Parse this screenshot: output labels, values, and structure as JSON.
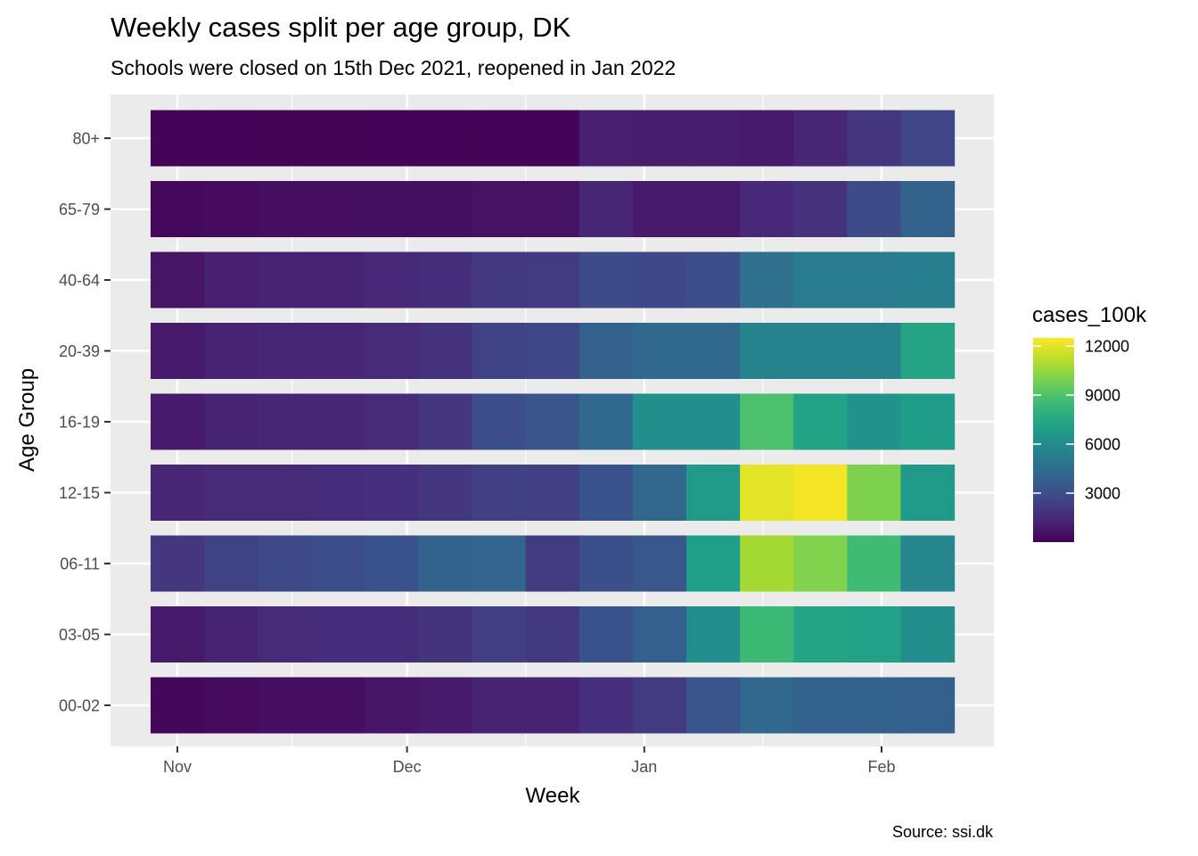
{
  "chart_data": {
    "type": "heatmap",
    "title": "Weekly cases split per age group, DK",
    "subtitle": "Schools were closed on 15th Dec 2021, reopened in Jan 2022",
    "xlabel": "Week",
    "ylabel": "Age Group",
    "caption": "Source: ssi.dk",
    "x_tick_labels": [
      "Nov",
      "Dec",
      "Jan",
      "Feb"
    ],
    "x_tick_dates": [
      "2021-11-01",
      "2021-12-01",
      "2022-01-01",
      "2022-02-01"
    ],
    "x": [
      "2021-11-01",
      "2021-11-08",
      "2021-11-15",
      "2021-11-22",
      "2021-11-29",
      "2021-12-06",
      "2021-12-13",
      "2021-12-20",
      "2021-12-27",
      "2022-01-03",
      "2022-01-10",
      "2022-01-17",
      "2022-01-24",
      "2022-01-31",
      "2022-02-07"
    ],
    "y": [
      "00-02",
      "03-05",
      "06-11",
      "12-15",
      "16-19",
      "20-39",
      "40-64",
      "65-79",
      "80+"
    ],
    "fill_name": "cases_100k",
    "fill_range": [
      0,
      12500
    ],
    "legend_ticks": [
      3000,
      6000,
      9000,
      12000
    ],
    "legend_placement": "right",
    "grid": true,
    "colors": {
      "panel_background": "#ebebeb",
      "grid_line": "#ffffff",
      "viridis": [
        "#440154",
        "#482878",
        "#3e4989",
        "#31688e",
        "#26828e",
        "#1f9e89",
        "#35b779",
        "#6ece58",
        "#b5de2b",
        "#fde725"
      ]
    },
    "values": {
      "00-02": [
        200,
        400,
        450,
        450,
        700,
        900,
        1200,
        1200,
        1700,
        2200,
        3300,
        4100,
        3900,
        3900,
        3800
      ],
      "03-05": [
        900,
        1200,
        1500,
        1600,
        1600,
        1900,
        2300,
        2100,
        3200,
        3800,
        6200,
        8500,
        7300,
        7100,
        6200
      ],
      "06-11": [
        2000,
        2500,
        2800,
        3000,
        3200,
        3900,
        4000,
        2200,
        3100,
        3400,
        7000,
        10800,
        10100,
        8600,
        5800
      ],
      "12-15": [
        1300,
        1500,
        1500,
        1600,
        1700,
        2000,
        2400,
        2400,
        3200,
        4100,
        6800,
        12000,
        12300,
        10000,
        6800
      ],
      "16-19": [
        900,
        1200,
        1300,
        1300,
        1500,
        2000,
        3000,
        3300,
        4200,
        6200,
        6200,
        8900,
        7200,
        6400,
        6900
      ],
      "20-39": [
        900,
        1200,
        1300,
        1300,
        1500,
        1800,
        2500,
        2700,
        3800,
        4200,
        4200,
        5600,
        5600,
        5600,
        7300
      ],
      "40-64": [
        700,
        1100,
        1200,
        1200,
        1400,
        1600,
        2100,
        2200,
        2900,
        2700,
        3000,
        4600,
        5200,
        5200,
        5400
      ],
      "65-79": [
        300,
        400,
        450,
        450,
        500,
        500,
        600,
        600,
        1300,
        900,
        900,
        1400,
        1800,
        2900,
        3900
      ],
      "80+": [
        100,
        120,
        130,
        130,
        140,
        120,
        110,
        140,
        1100,
        1000,
        1000,
        900,
        1300,
        2000,
        2600
      ]
    }
  }
}
